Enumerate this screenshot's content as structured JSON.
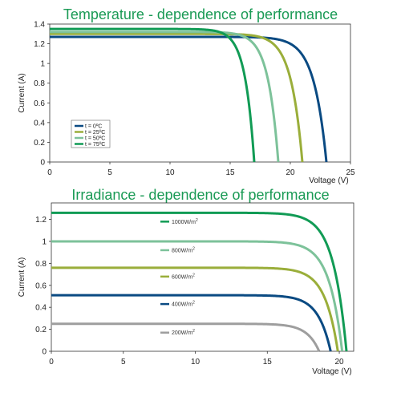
{
  "chart_data": [
    {
      "type": "line",
      "title": "Temperature - dependence of performance",
      "xlabel": "Voltage (V)",
      "ylabel": "Current (A)",
      "xlim": [
        0,
        25
      ],
      "ylim": [
        0,
        1.4
      ],
      "xticks": [
        "0",
        "5",
        "10",
        "15",
        "20",
        "25"
      ],
      "yticks": [
        "0",
        "0.2",
        "0.4",
        "0.6",
        "0.8",
        "1",
        "1.2",
        "1.4"
      ],
      "legend_position": "bottom-left",
      "series": [
        {
          "name": "t = 0ºC",
          "color": "#0a4a82",
          "isc": 1.27,
          "voc": 23.0
        },
        {
          "name": "t = 25ºC",
          "color": "#9aae3a",
          "isc": 1.3,
          "voc": 21.0
        },
        {
          "name": "t = 50ºC",
          "color": "#7dc29a",
          "isc": 1.32,
          "voc": 19.0
        },
        {
          "name": "t = 75ºC",
          "color": "#119b55",
          "isc": 1.35,
          "voc": 17.0
        }
      ]
    },
    {
      "type": "line",
      "title": "Irradiance - dependence of performance",
      "xlabel": "Voltage (V)",
      "ylabel": "Current (A)",
      "xlim": [
        0,
        21
      ],
      "ylim": [
        0,
        1.35
      ],
      "xticks": [
        "0",
        "5",
        "10",
        "15",
        "20"
      ],
      "yticks": [
        "0",
        "0.2",
        "0.4",
        "0.6",
        "0.8",
        "1",
        "1.2"
      ],
      "legend_position": "inline",
      "series": [
        {
          "name": "1000W/m",
          "sup": "2",
          "color": "#119b55",
          "isc": 1.26,
          "voc": 20.5
        },
        {
          "name": "800W/m",
          "sup": "2",
          "color": "#7dc29a",
          "isc": 1.0,
          "voc": 20.2
        },
        {
          "name": "600W/m",
          "sup": "2",
          "color": "#9aae3a",
          "isc": 0.76,
          "voc": 19.9
        },
        {
          "name": "400W/m",
          "sup": "2",
          "color": "#0a4a82",
          "isc": 0.51,
          "voc": 19.4
        },
        {
          "name": "200W/m",
          "sup": "2",
          "color": "#9e9e9e",
          "isc": 0.25,
          "voc": 18.6
        }
      ]
    }
  ]
}
